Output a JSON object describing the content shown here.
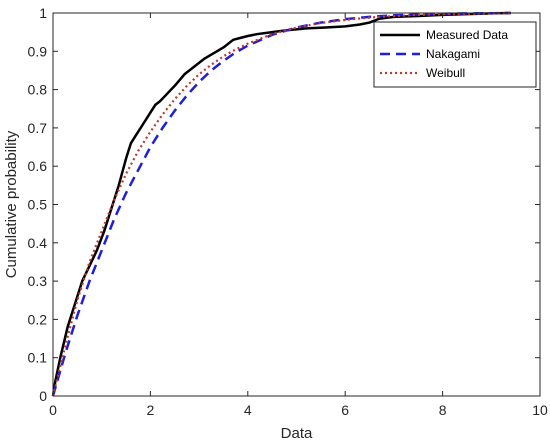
{
  "chart_data": {
    "type": "line",
    "title": "",
    "xlabel": "Data",
    "ylabel": "Cumulative probability",
    "xlim": [
      0,
      10
    ],
    "ylim": [
      0,
      1
    ],
    "xticks": [
      "0",
      "2",
      "4",
      "6",
      "8",
      "10"
    ],
    "yticks": [
      "0",
      "0.1",
      "0.2",
      "0.3",
      "0.4",
      "0.5",
      "0.6",
      "0.7",
      "0.8",
      "0.9",
      "1"
    ],
    "grid": false,
    "legend_position": "top-right",
    "series": [
      {
        "name": "Measured Data",
        "color": "#000000",
        "style": "solid",
        "x": [
          0,
          0.05,
          0.15,
          0.3,
          0.45,
          0.6,
          0.75,
          0.9,
          1.05,
          1.2,
          1.35,
          1.5,
          1.6,
          1.75,
          1.9,
          2.0,
          2.1,
          2.2,
          2.35,
          2.5,
          2.7,
          2.9,
          3.1,
          3.3,
          3.5,
          3.7,
          3.85,
          4.0,
          4.2,
          4.5,
          4.8,
          5.2,
          5.6,
          6.0,
          6.3,
          6.5,
          6.7,
          7.0,
          7.5,
          8.0,
          8.5,
          9.0,
          9.4
        ],
        "y": [
          0,
          0.04,
          0.1,
          0.18,
          0.24,
          0.3,
          0.34,
          0.38,
          0.43,
          0.49,
          0.55,
          0.62,
          0.66,
          0.69,
          0.72,
          0.74,
          0.76,
          0.77,
          0.79,
          0.81,
          0.84,
          0.86,
          0.88,
          0.895,
          0.91,
          0.93,
          0.935,
          0.94,
          0.945,
          0.95,
          0.955,
          0.96,
          0.962,
          0.965,
          0.97,
          0.975,
          0.985,
          0.99,
          0.992,
          0.995,
          0.997,
          0.999,
          1.0
        ]
      },
      {
        "name": "Nakagami",
        "color": "#1f1fd6",
        "style": "dashed",
        "x": [
          0,
          0.25,
          0.5,
          0.75,
          1.0,
          1.25,
          1.5,
          1.75,
          2.0,
          2.25,
          2.5,
          2.75,
          3.0,
          3.25,
          3.5,
          3.75,
          4.0,
          4.5,
          5.0,
          5.5,
          6.0,
          6.5,
          7.0,
          7.5,
          8.0,
          8.5,
          9.0,
          9.4
        ],
        "y": [
          0,
          0.11,
          0.21,
          0.3,
          0.38,
          0.46,
          0.53,
          0.59,
          0.65,
          0.7,
          0.745,
          0.785,
          0.82,
          0.85,
          0.875,
          0.897,
          0.915,
          0.943,
          0.962,
          0.975,
          0.984,
          0.99,
          0.994,
          0.996,
          0.998,
          0.999,
          0.9995,
          1.0
        ]
      },
      {
        "name": "Weibull",
        "color": "#c0392b",
        "style": "dotted",
        "x": [
          0,
          0.25,
          0.5,
          0.75,
          1.0,
          1.25,
          1.5,
          1.75,
          2.0,
          2.25,
          2.5,
          2.75,
          3.0,
          3.25,
          3.5,
          3.75,
          4.0,
          4.5,
          5.0,
          5.5,
          6.0,
          6.5,
          7.0,
          7.5,
          8.0,
          8.5,
          9.0,
          9.4
        ],
        "y": [
          0,
          0.13,
          0.25,
          0.35,
          0.43,
          0.51,
          0.58,
          0.64,
          0.69,
          0.735,
          0.775,
          0.81,
          0.84,
          0.865,
          0.887,
          0.905,
          0.92,
          0.945,
          0.962,
          0.974,
          0.982,
          0.988,
          0.992,
          0.995,
          0.997,
          0.998,
          0.999,
          0.9995
        ]
      }
    ]
  }
}
